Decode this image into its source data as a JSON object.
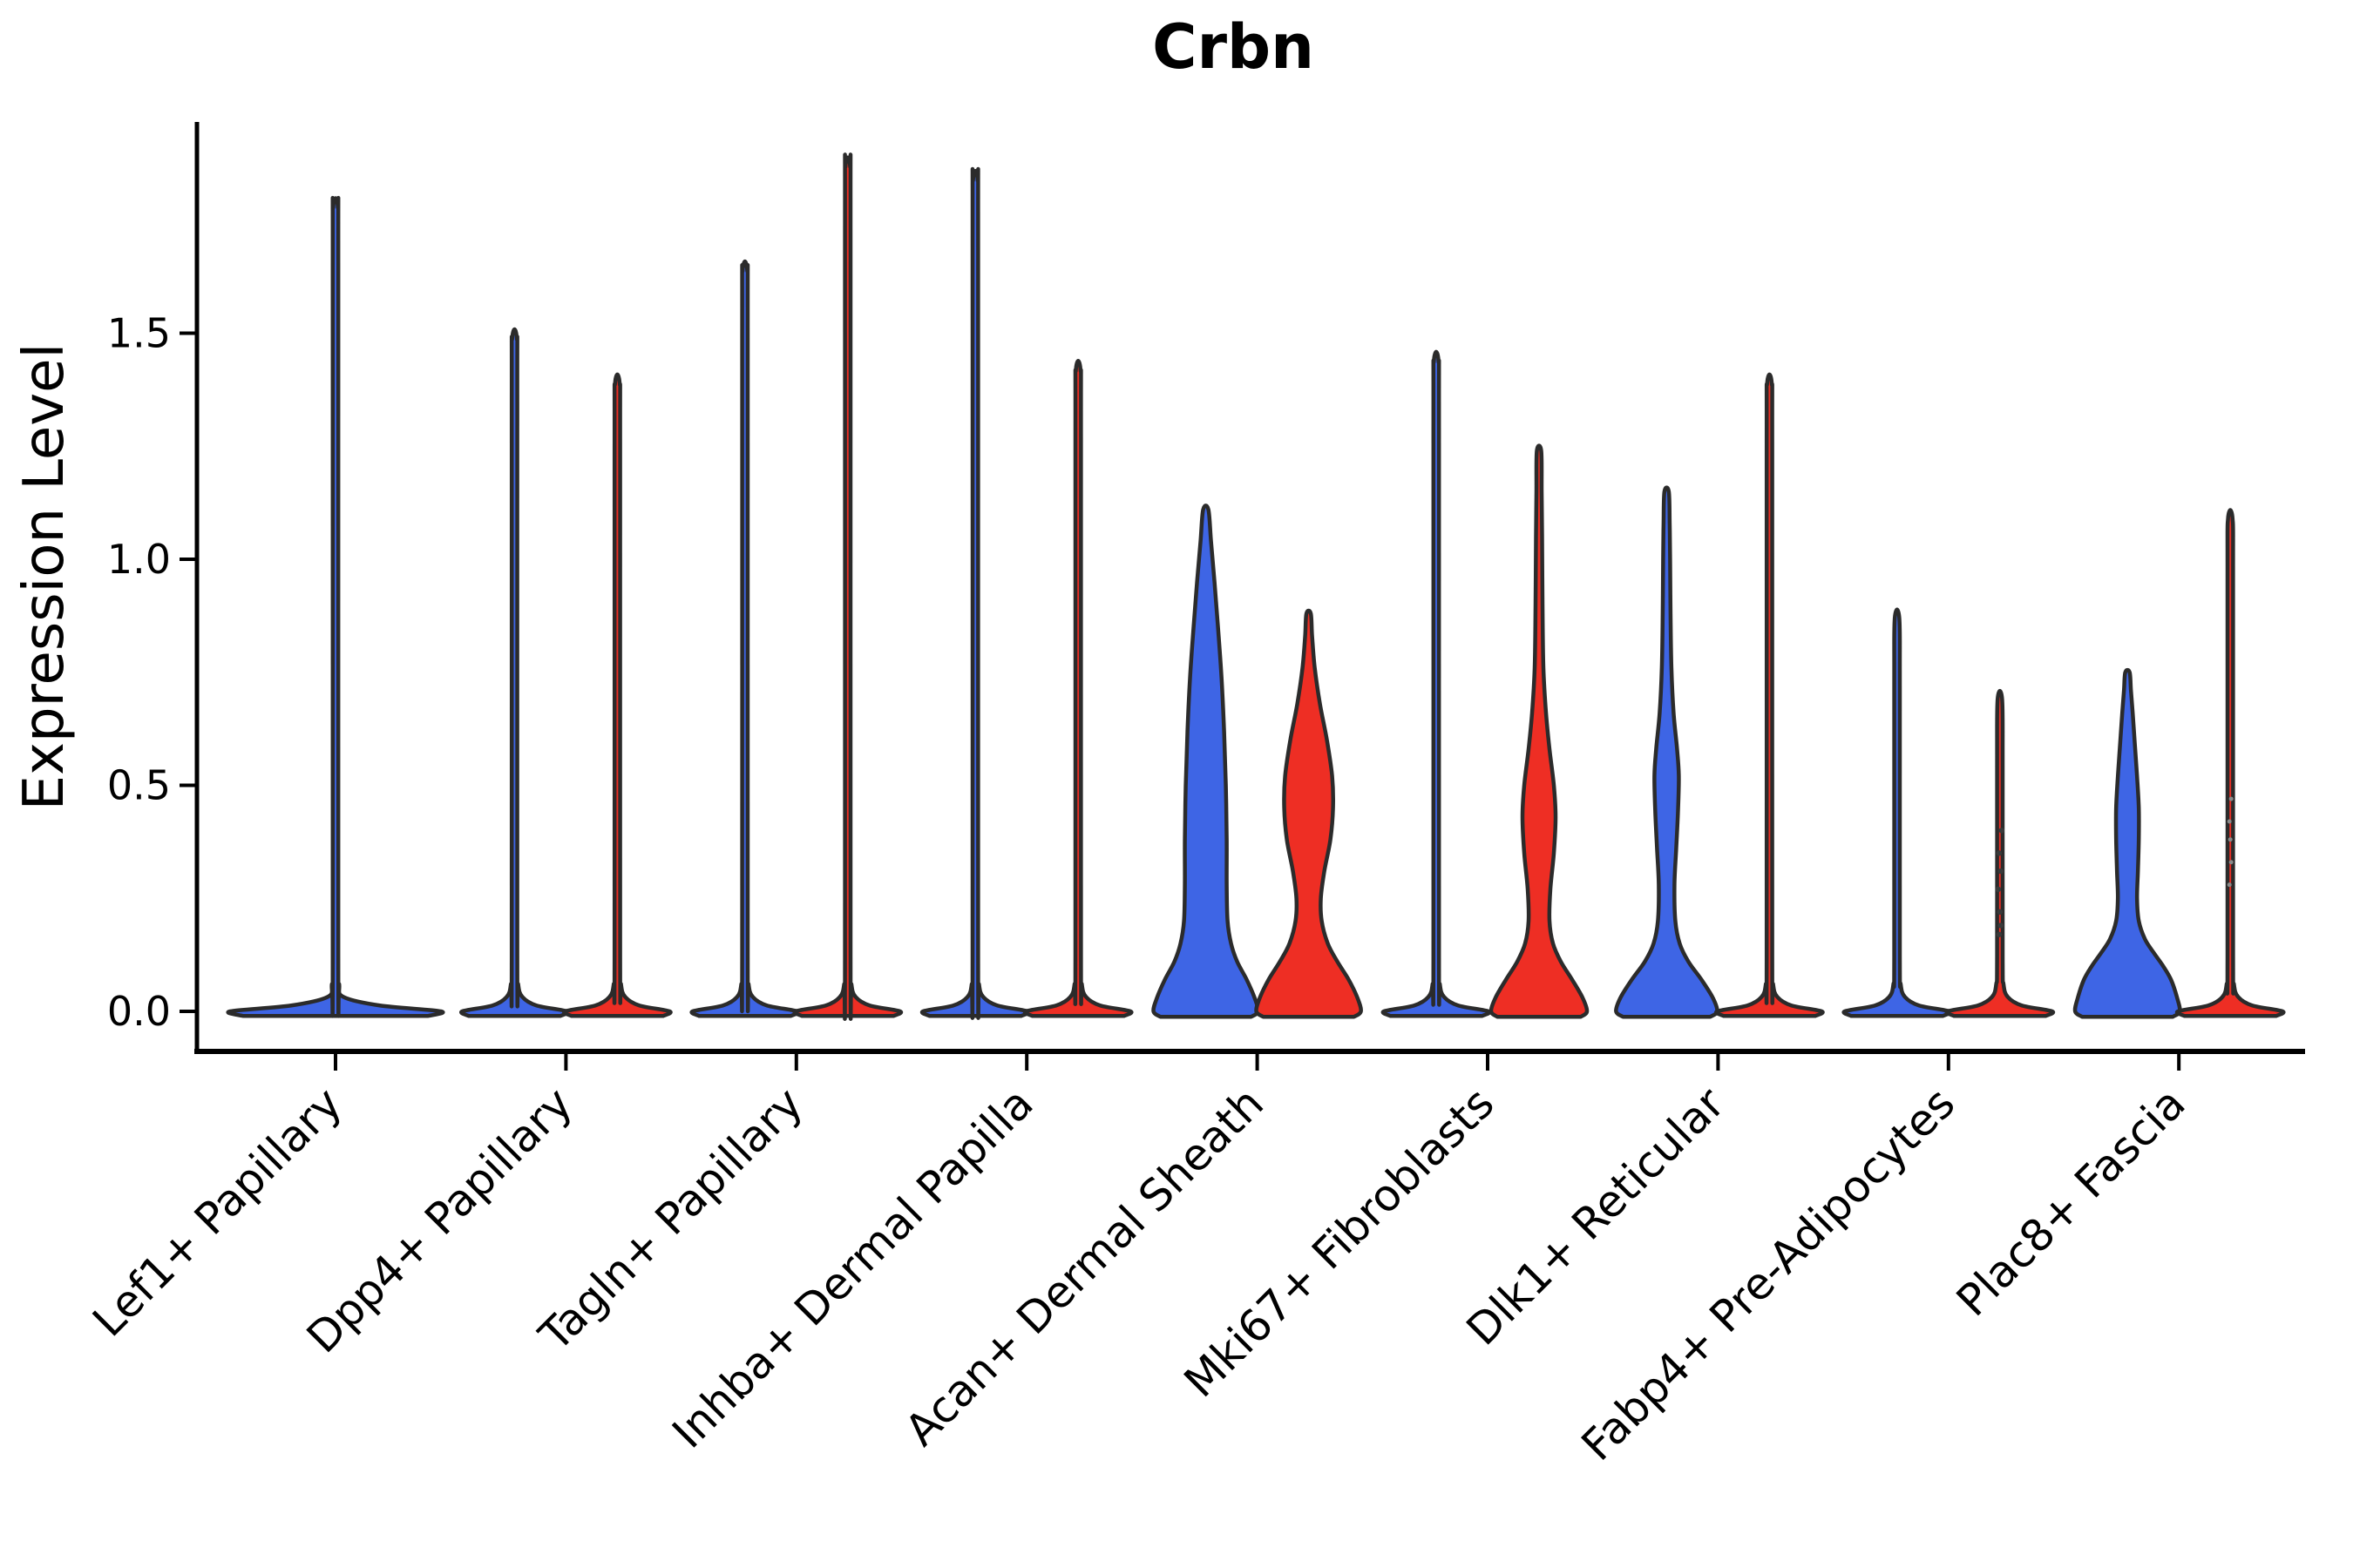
{
  "chart_data": {
    "type": "violin",
    "title": "Crbn",
    "xlabel": "",
    "ylabel": "Expression Level",
    "ytick_values": [
      0.0,
      0.5,
      1.0,
      1.5
    ],
    "ytick_labels": [
      "0.0",
      "0.5",
      "1.0",
      "1.5"
    ],
    "ylim": [
      -0.09,
      1.97
    ],
    "grid": false,
    "legend": "none",
    "colors": {
      "group1_blue": "#3E65E5",
      "group2_red": "#EE2E24",
      "outline": "#2B2B2B",
      "axis": "#000000",
      "points_dark": "#3A3A3A",
      "points_faint": "#8A8A8A"
    },
    "categories": [
      {
        "label": "Lef1+ Papillary",
        "violins": [
          {
            "group": "1",
            "color": "blue",
            "kind": "spike",
            "max": 1.78,
            "center": "mid",
            "wide": true
          }
        ]
      },
      {
        "label": "Dpp4+ Papillary",
        "violins": [
          {
            "group": "1",
            "color": "blue",
            "kind": "spike",
            "max": 1.49,
            "center": "left"
          },
          {
            "group": "2",
            "color": "red",
            "kind": "spike",
            "max": 1.39,
            "center": "right"
          }
        ]
      },
      {
        "label": "Tagln+ Papillary",
        "violins": [
          {
            "group": "1",
            "color": "blue",
            "kind": "spike",
            "max": 1.64,
            "center": "left"
          },
          {
            "group": "2",
            "color": "red",
            "kind": "spike",
            "max": 1.87,
            "center": "right"
          }
        ]
      },
      {
        "label": "Inhba+ Dermal Papilla",
        "violins": [
          {
            "group": "1",
            "color": "blue",
            "kind": "spike",
            "max": 1.84,
            "center": "left"
          },
          {
            "group": "2",
            "color": "red",
            "kind": "spike",
            "max": 1.42,
            "center": "right"
          }
        ]
      },
      {
        "label": "Acan+ Dermal Sheath",
        "violins": [
          {
            "group": "1",
            "color": "blue",
            "kind": "violin",
            "max": 1.11,
            "center": "left",
            "profile": [
              [
                -0.012,
                52
              ],
              [
                0,
                60
              ],
              [
                0.03,
                56
              ],
              [
                0.07,
                47
              ],
              [
                0.11,
                36
              ],
              [
                0.15,
                29
              ],
              [
                0.2,
                25
              ],
              [
                0.28,
                24
              ],
              [
                0.38,
                24
              ],
              [
                0.5,
                23
              ],
              [
                0.62,
                21
              ],
              [
                0.74,
                18
              ],
              [
                0.85,
                14
              ],
              [
                0.95,
                10
              ],
              [
                1.04,
                6
              ],
              [
                1.11,
                3
              ]
            ]
          },
          {
            "group": "2",
            "color": "red",
            "kind": "violin",
            "max": 0.88,
            "center": "right",
            "profile": [
              [
                -0.012,
                52
              ],
              [
                0,
                60
              ],
              [
                0.03,
                56
              ],
              [
                0.07,
                46
              ],
              [
                0.11,
                33
              ],
              [
                0.15,
                22
              ],
              [
                0.2,
                15
              ],
              [
                0.25,
                14
              ],
              [
                0.31,
                18
              ],
              [
                0.38,
                25
              ],
              [
                0.45,
                28
              ],
              [
                0.52,
                27
              ],
              [
                0.6,
                21
              ],
              [
                0.68,
                13
              ],
              [
                0.76,
                7
              ],
              [
                0.83,
                4
              ],
              [
                0.88,
                2.5
              ]
            ]
          }
        ]
      },
      {
        "label": "Mki67+ Fibroblasts",
        "violins": [
          {
            "group": "1",
            "color": "blue",
            "kind": "spike",
            "max": 1.44,
            "center": "left"
          },
          {
            "group": "2",
            "color": "red",
            "kind": "violin",
            "max": 1.24,
            "center": "right",
            "profile": [
              [
                -0.012,
                48
              ],
              [
                0,
                55
              ],
              [
                0.03,
                50
              ],
              [
                0.07,
                38
              ],
              [
                0.11,
                25
              ],
              [
                0.15,
                16
              ],
              [
                0.2,
                12
              ],
              [
                0.27,
                13
              ],
              [
                0.35,
                17
              ],
              [
                0.43,
                19
              ],
              [
                0.5,
                17
              ],
              [
                0.58,
                12
              ],
              [
                0.66,
                8
              ],
              [
                0.76,
                5
              ],
              [
                0.9,
                4
              ],
              [
                1.05,
                3.5
              ],
              [
                1.15,
                3
              ],
              [
                1.24,
                2.5
              ]
            ]
          }
        ]
      },
      {
        "label": "Dlk1+ Reticular",
        "violins": [
          {
            "group": "1",
            "color": "blue",
            "kind": "violin",
            "max": 1.15,
            "center": "left",
            "profile": [
              [
                -0.012,
                50
              ],
              [
                0,
                58
              ],
              [
                0.03,
                53
              ],
              [
                0.07,
                40
              ],
              [
                0.11,
                25
              ],
              [
                0.15,
                15
              ],
              [
                0.2,
                10
              ],
              [
                0.28,
                9
              ],
              [
                0.36,
                11
              ],
              [
                0.44,
                13
              ],
              [
                0.52,
                14
              ],
              [
                0.58,
                12
              ],
              [
                0.66,
                8
              ],
              [
                0.76,
                5.5
              ],
              [
                0.88,
                4.5
              ],
              [
                1.0,
                4
              ],
              [
                1.08,
                3.5
              ],
              [
                1.15,
                2.5
              ]
            ]
          },
          {
            "group": "2",
            "color": "red",
            "kind": "spike",
            "max": 1.39,
            "center": "right"
          }
        ]
      },
      {
        "label": "Fabp4+ Pre-Adipocytes",
        "violins": [
          {
            "group": "1",
            "color": "blue",
            "kind": "spike",
            "max": 0.87,
            "center": "left"
          },
          {
            "group": "2",
            "color": "red",
            "kind": "spike",
            "max": 0.69,
            "center": "right",
            "points": [
              {
                "v": 0.4,
                "jx": 2
              },
              {
                "v": 0.35,
                "jx": -1
              },
              {
                "v": 0.31,
                "jx": 1
              },
              {
                "v": 0.27,
                "jx": -2
              },
              {
                "v": 0.22,
                "jx": 0
              },
              {
                "v": 0.19,
                "jx": 1
              },
              {
                "v": 0.17,
                "jx": -1
              }
            ],
            "point_style": "dark"
          }
        ]
      },
      {
        "label": "Plac8+ Fascia",
        "violins": [
          {
            "group": "1",
            "color": "blue",
            "kind": "violin",
            "max": 0.75,
            "center": "left",
            "profile": [
              [
                -0.012,
                52
              ],
              [
                0,
                60
              ],
              [
                0.03,
                57
              ],
              [
                0.07,
                50
              ],
              [
                0.1,
                41
              ],
              [
                0.13,
                30
              ],
              [
                0.16,
                20
              ],
              [
                0.2,
                13
              ],
              [
                0.25,
                11
              ],
              [
                0.31,
                12
              ],
              [
                0.38,
                13
              ],
              [
                0.45,
                13
              ],
              [
                0.52,
                11
              ],
              [
                0.59,
                8.5
              ],
              [
                0.66,
                6
              ],
              [
                0.71,
                4
              ],
              [
                0.75,
                2.5
              ]
            ]
          },
          {
            "group": "2",
            "color": "red",
            "kind": "spike",
            "max": 1.09,
            "center": "right",
            "points": [
              {
                "v": 0.47,
                "jx": 1
              },
              {
                "v": 0.42,
                "jx": -1
              },
              {
                "v": 0.38,
                "jx": 0
              },
              {
                "v": 0.33,
                "jx": 1
              },
              {
                "v": 0.28,
                "jx": -1
              }
            ],
            "point_style": "faint"
          }
        ]
      }
    ]
  }
}
